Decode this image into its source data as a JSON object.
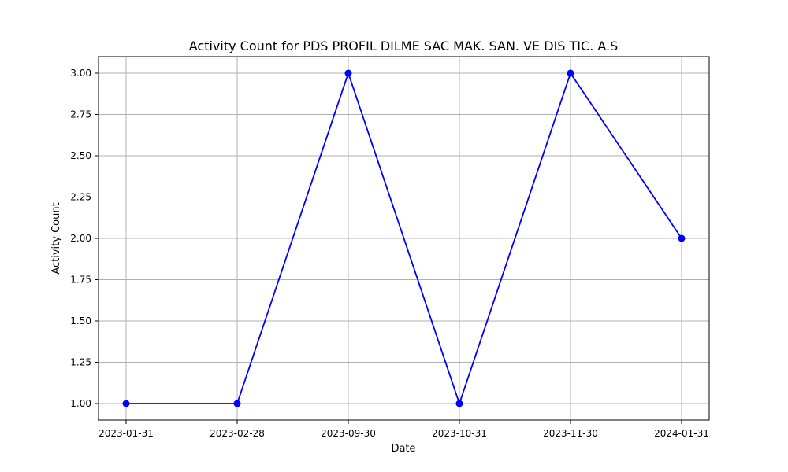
{
  "chart_data": {
    "type": "line",
    "title": "Activity Count for PDS PROFIL DILME SAC MAK. SAN. VE DIS TIC. A.S",
    "xlabel": "Date",
    "ylabel": "Activity Count",
    "categories": [
      "2023-01-31",
      "2023-02-28",
      "2023-09-30",
      "2023-10-31",
      "2023-11-30",
      "2024-01-31"
    ],
    "series": [
      {
        "values": [
          1,
          1,
          3,
          1,
          3,
          2
        ],
        "color": "#0000ff",
        "marker": "circle"
      }
    ],
    "yticks": [
      "1.00",
      "1.25",
      "1.50",
      "1.75",
      "2.00",
      "2.25",
      "2.50",
      "2.75",
      "3.00"
    ],
    "ylim": [
      0.9,
      3.1
    ],
    "grid": true
  }
}
